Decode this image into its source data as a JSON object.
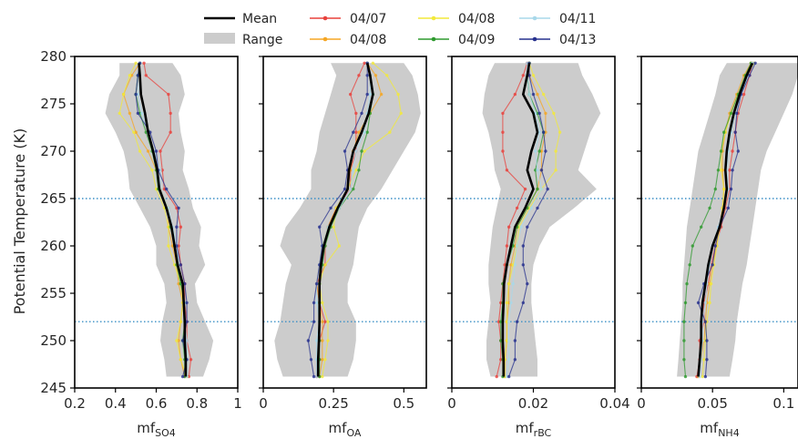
{
  "chart_data": {
    "type": "line",
    "ylabel": "Potential Temperature (K)",
    "ylim": [
      245,
      280
    ],
    "yticks": [
      245,
      250,
      255,
      260,
      265,
      270,
      275,
      280
    ],
    "reference_lines": [
      265,
      252
    ],
    "legend": {
      "placement": "top",
      "mean_label": "Mean",
      "range_label": "Range",
      "flights": [
        {
          "name": "04/07",
          "color": "#e8413c"
        },
        {
          "name": "04/08",
          "color": "#f5a623"
        },
        {
          "name": "04/08",
          "color": "#f2e93a"
        },
        {
          "name": "04/09",
          "color": "#2e9a2e"
        },
        {
          "name": "04/11",
          "color": "#a8d8ea"
        },
        {
          "name": "04/13",
          "color": "#27318e"
        }
      ]
    },
    "theta": [
      246.2,
      248,
      250,
      252,
      254,
      256,
      258,
      260,
      262,
      264,
      266,
      268,
      270,
      272,
      274,
      276,
      278,
      279.3
    ],
    "panels": [
      {
        "id": "so4",
        "xlabel_main": "mf",
        "xlabel_sub": "SO4",
        "xlim": [
          0.2,
          1.0
        ],
        "xticks": [
          0.2,
          0.4,
          0.6,
          0.8,
          1.0
        ],
        "xtick_labels": [
          "0.2",
          "0.4",
          "0.6",
          "0.8",
          "1"
        ],
        "mean": [
          0.745,
          0.745,
          0.74,
          0.74,
          0.735,
          0.73,
          0.705,
          0.69,
          0.675,
          0.65,
          0.615,
          0.605,
          0.585,
          0.56,
          0.545,
          0.525,
          0.52,
          0.515
        ],
        "range_min": [
          0.65,
          0.64,
          0.62,
          0.63,
          0.65,
          0.64,
          0.6,
          0.6,
          0.57,
          0.52,
          0.47,
          0.46,
          0.44,
          0.4,
          0.35,
          0.37,
          0.42,
          0.42
        ],
        "range_max": [
          0.83,
          0.86,
          0.88,
          0.84,
          0.8,
          0.79,
          0.84,
          0.81,
          0.82,
          0.78,
          0.76,
          0.73,
          0.74,
          0.72,
          0.71,
          0.74,
          0.72,
          0.68
        ],
        "series": [
          [
            0.76,
            0.77,
            0.75,
            0.75,
            0.74,
            0.74,
            0.72,
            0.71,
            0.72,
            0.7,
            0.64,
            0.63,
            0.62,
            0.67,
            0.67,
            0.66,
            0.55,
            0.54
          ],
          [
            0.74,
            0.72,
            0.71,
            0.72,
            0.73,
            0.71,
            0.7,
            0.68,
            0.66,
            0.66,
            0.62,
            0.6,
            0.56,
            0.5,
            0.47,
            0.44,
            0.48,
            0.52
          ],
          [
            0.75,
            0.72,
            0.7,
            0.72,
            0.73,
            0.72,
            0.69,
            0.66,
            0.66,
            0.64,
            0.6,
            0.58,
            0.52,
            0.49,
            0.42,
            0.44,
            0.47,
            0.5
          ],
          [
            0.74,
            0.74,
            0.73,
            0.74,
            0.74,
            0.72,
            0.7,
            0.69,
            0.67,
            0.65,
            0.61,
            0.6,
            0.58,
            0.55,
            0.52,
            0.5,
            0.51,
            0.52
          ],
          [
            0.75,
            0.75,
            0.75,
            0.74,
            0.74,
            0.73,
            0.71,
            0.7,
            0.68,
            0.66,
            0.62,
            0.62,
            0.59,
            0.56,
            0.53,
            0.51,
            0.52,
            0.52
          ],
          [
            0.73,
            0.75,
            0.73,
            0.75,
            0.75,
            0.74,
            0.72,
            0.7,
            0.7,
            0.71,
            0.65,
            0.61,
            0.6,
            0.57,
            0.51,
            0.5,
            0.51,
            0.52
          ]
        ]
      },
      {
        "id": "oa",
        "xlabel_main": "mf",
        "xlabel_sub": "OA",
        "xlim": [
          0.0,
          0.58
        ],
        "xticks": [
          0.0,
          0.25,
          0.5
        ],
        "xtick_labels": [
          "0",
          "0.25",
          "0.5"
        ],
        "mean": [
          0.195,
          0.195,
          0.198,
          0.2,
          0.2,
          0.2,
          0.205,
          0.215,
          0.235,
          0.265,
          0.3,
          0.305,
          0.32,
          0.35,
          0.375,
          0.39,
          0.38,
          0.37
        ],
        "range_min": [
          0.07,
          0.05,
          0.04,
          0.06,
          0.07,
          0.08,
          0.1,
          0.06,
          0.08,
          0.13,
          0.17,
          0.17,
          0.19,
          0.2,
          0.22,
          0.24,
          0.26,
          0.24
        ],
        "range_max": [
          0.3,
          0.32,
          0.33,
          0.33,
          0.3,
          0.3,
          0.32,
          0.33,
          0.34,
          0.37,
          0.42,
          0.46,
          0.5,
          0.54,
          0.56,
          0.55,
          0.53,
          0.5
        ],
        "series": [
          [
            0.19,
            0.2,
            0.2,
            0.22,
            0.2,
            0.19,
            0.22,
            0.22,
            0.23,
            0.26,
            0.31,
            0.31,
            0.33,
            0.33,
            0.33,
            0.31,
            0.34,
            0.36
          ],
          [
            0.2,
            0.21,
            0.21,
            0.21,
            0.2,
            0.19,
            0.2,
            0.21,
            0.23,
            0.26,
            0.3,
            0.31,
            0.32,
            0.34,
            0.38,
            0.42,
            0.4,
            0.37
          ],
          [
            0.21,
            0.22,
            0.23,
            0.23,
            0.21,
            0.2,
            0.22,
            0.27,
            0.25,
            0.26,
            0.3,
            0.33,
            0.36,
            0.45,
            0.49,
            0.48,
            0.44,
            0.39
          ],
          [
            0.2,
            0.2,
            0.2,
            0.2,
            0.2,
            0.2,
            0.21,
            0.22,
            0.24,
            0.27,
            0.32,
            0.34,
            0.35,
            0.37,
            0.38,
            0.39,
            0.38,
            0.37
          ],
          [
            0.19,
            0.19,
            0.19,
            0.2,
            0.19,
            0.19,
            0.2,
            0.21,
            0.23,
            0.27,
            0.31,
            0.32,
            0.33,
            0.36,
            0.37,
            0.38,
            0.38,
            0.37
          ],
          [
            0.18,
            0.17,
            0.16,
            0.18,
            0.18,
            0.19,
            0.2,
            0.21,
            0.2,
            0.24,
            0.29,
            0.3,
            0.29,
            0.32,
            0.35,
            0.37,
            0.37,
            0.37
          ]
        ]
      },
      {
        "id": "rbc",
        "xlabel_main": "mf",
        "xlabel_sub": "rBC",
        "xlim": [
          0.0,
          0.04
        ],
        "xticks": [
          0.0,
          0.02,
          0.04
        ],
        "xtick_labels": [
          "0",
          "0.02",
          "0.04"
        ],
        "mean": [
          0.0127,
          0.0127,
          0.0125,
          0.0125,
          0.0127,
          0.0128,
          0.0135,
          0.0145,
          0.0155,
          0.018,
          0.02,
          0.0185,
          0.0195,
          0.021,
          0.02,
          0.0175,
          0.0185,
          0.019
        ],
        "range_min": [
          0.0095,
          0.0085,
          0.0085,
          0.009,
          0.0095,
          0.009,
          0.009,
          0.0095,
          0.01,
          0.011,
          0.012,
          0.0105,
          0.01,
          0.009,
          0.0075,
          0.008,
          0.009,
          0.0105
        ],
        "range_max": [
          0.021,
          0.021,
          0.0205,
          0.02,
          0.0195,
          0.0195,
          0.02,
          0.0215,
          0.024,
          0.03,
          0.0355,
          0.031,
          0.0325,
          0.034,
          0.0365,
          0.0345,
          0.032,
          0.031
        ],
        "series": [
          [
            0.011,
            0.012,
            0.012,
            0.0115,
            0.012,
            0.0125,
            0.013,
            0.0135,
            0.014,
            0.016,
            0.018,
            0.0135,
            0.0125,
            0.0125,
            0.0125,
            0.0155,
            0.0175,
            0.0185
          ],
          [
            0.013,
            0.013,
            0.0135,
            0.0135,
            0.014,
            0.014,
            0.0145,
            0.0155,
            0.016,
            0.0185,
            0.021,
            0.022,
            0.022,
            0.023,
            0.023,
            0.021,
            0.019,
            0.019
          ],
          [
            0.013,
            0.013,
            0.0135,
            0.0135,
            0.0135,
            0.014,
            0.015,
            0.016,
            0.0165,
            0.019,
            0.022,
            0.0255,
            0.0255,
            0.0265,
            0.025,
            0.0225,
            0.02,
            0.019
          ],
          [
            0.0125,
            0.0125,
            0.012,
            0.012,
            0.0125,
            0.0125,
            0.0135,
            0.015,
            0.016,
            0.0185,
            0.021,
            0.0205,
            0.0215,
            0.0225,
            0.021,
            0.019,
            0.0185,
            0.019
          ],
          [
            0.0135,
            0.014,
            0.014,
            0.014,
            0.0145,
            0.015,
            0.0155,
            0.016,
            0.017,
            0.0195,
            0.022,
            0.021,
            0.0205,
            0.0215,
            0.0205,
            0.019,
            0.0185,
            0.0185
          ],
          [
            0.014,
            0.0155,
            0.0155,
            0.016,
            0.0175,
            0.0185,
            0.0175,
            0.0175,
            0.0185,
            0.021,
            0.0235,
            0.022,
            0.023,
            0.0225,
            0.0215,
            0.02,
            0.019,
            0.019
          ]
        ]
      },
      {
        "id": "nh4",
        "xlabel_main": "mf",
        "xlabel_sub": "NH4",
        "xlim": [
          0.0,
          0.11
        ],
        "xticks": [
          0.0,
          0.05,
          0.1
        ],
        "xtick_labels": [
          "0",
          "0.05",
          "0.1"
        ],
        "mean": [
          0.04,
          0.041,
          0.042,
          0.042,
          0.043,
          0.045,
          0.047,
          0.05,
          0.055,
          0.058,
          0.06,
          0.059,
          0.06,
          0.062,
          0.065,
          0.069,
          0.074,
          0.078
        ],
        "range_min": [
          0.025,
          0.026,
          0.027,
          0.028,
          0.029,
          0.029,
          0.03,
          0.031,
          0.032,
          0.034,
          0.036,
          0.038,
          0.04,
          0.044,
          0.048,
          0.052,
          0.055,
          0.06
        ],
        "range_max": [
          0.062,
          0.064,
          0.066,
          0.067,
          0.069,
          0.071,
          0.074,
          0.076,
          0.078,
          0.08,
          0.082,
          0.084,
          0.088,
          0.094,
          0.1,
          0.106,
          0.11,
          0.11
        ],
        "series": [
          [
            0.039,
            0.041,
            0.041,
            0.044,
            0.044,
            0.047,
            0.049,
            0.052,
            0.056,
            0.059,
            0.062,
            0.062,
            0.064,
            0.066,
            0.068,
            0.072,
            0.076,
            0.078
          ],
          [
            0.04,
            0.042,
            0.044,
            0.045,
            0.046,
            0.048,
            0.05,
            0.053,
            0.055,
            0.057,
            0.058,
            0.057,
            0.057,
            0.059,
            0.062,
            0.067,
            0.072,
            0.077
          ],
          [
            0.043,
            0.044,
            0.045,
            0.046,
            0.048,
            0.049,
            0.051,
            0.053,
            0.055,
            0.057,
            0.058,
            0.056,
            0.056,
            0.059,
            0.063,
            0.068,
            0.074,
            0.079
          ],
          [
            0.031,
            0.03,
            0.03,
            0.03,
            0.031,
            0.032,
            0.034,
            0.036,
            0.042,
            0.048,
            0.052,
            0.054,
            0.056,
            0.058,
            0.063,
            0.068,
            0.073,
            0.077
          ],
          [
            0.041,
            0.042,
            0.043,
            0.043,
            0.045,
            0.046,
            0.048,
            0.05,
            0.054,
            0.058,
            0.061,
            0.06,
            0.061,
            0.063,
            0.066,
            0.07,
            0.075,
            0.078
          ],
          [
            0.045,
            0.046,
            0.046,
            0.045,
            0.04,
            0.044,
            0.05,
            0.052,
            0.055,
            0.061,
            0.063,
            0.064,
            0.068,
            0.066,
            0.067,
            0.07,
            0.076,
            0.08
          ]
        ]
      }
    ]
  }
}
